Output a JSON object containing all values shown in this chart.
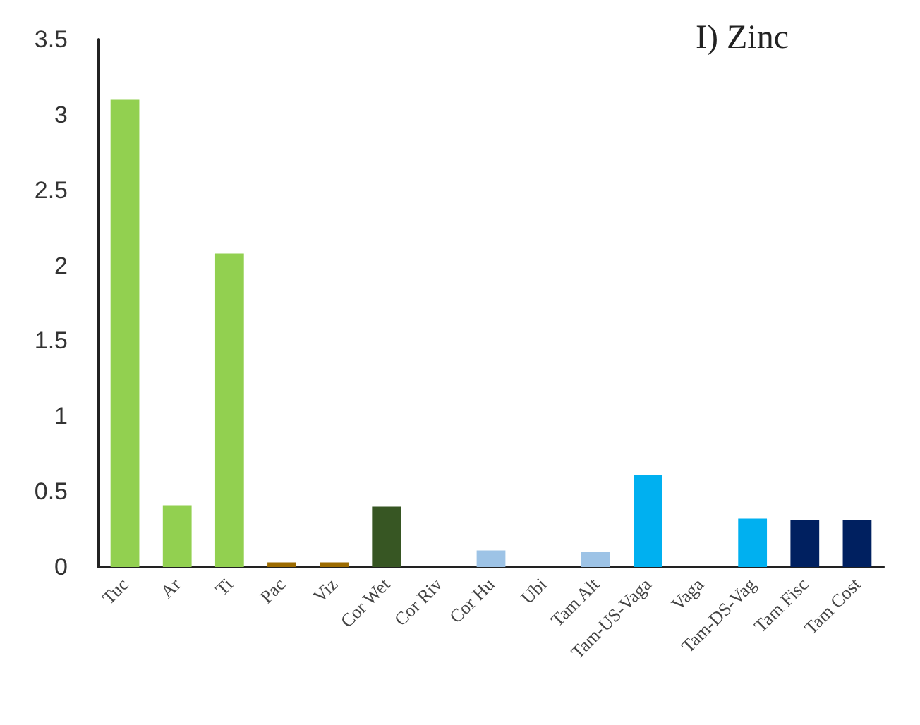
{
  "chart_data": {
    "type": "bar",
    "title": "I) Zinc",
    "categories": [
      "Tuc",
      "Ar",
      "Ti",
      "Pac",
      "Viz",
      "Cor Wet",
      "Cor Riv",
      "Cor Hu",
      "Ubi",
      "Tam Alt",
      "Tam-US-Vaga",
      "Vaga",
      "Tam-DS-Vag",
      "Tam Fisc",
      "Tam Cost"
    ],
    "values": [
      3.1,
      0.41,
      2.08,
      0.03,
      0.03,
      0.4,
      0,
      0.11,
      0,
      0.1,
      0.61,
      0,
      0.32,
      0.31,
      0.31
    ],
    "colors": [
      "#92d050",
      "#92d050",
      "#92d050",
      "#9c6b00",
      "#9c6b00",
      "#375623",
      "#375623",
      "#9dc3e6",
      "#9dc3e6",
      "#9dc3e6",
      "#00b0f0",
      "#00b0f0",
      "#00b0f0",
      "#002060",
      "#002060"
    ],
    "ylim": [
      0,
      3.5
    ],
    "yticks": [
      0,
      0.5,
      1,
      1.5,
      2,
      2.5,
      3,
      3.5
    ],
    "grid": false
  }
}
